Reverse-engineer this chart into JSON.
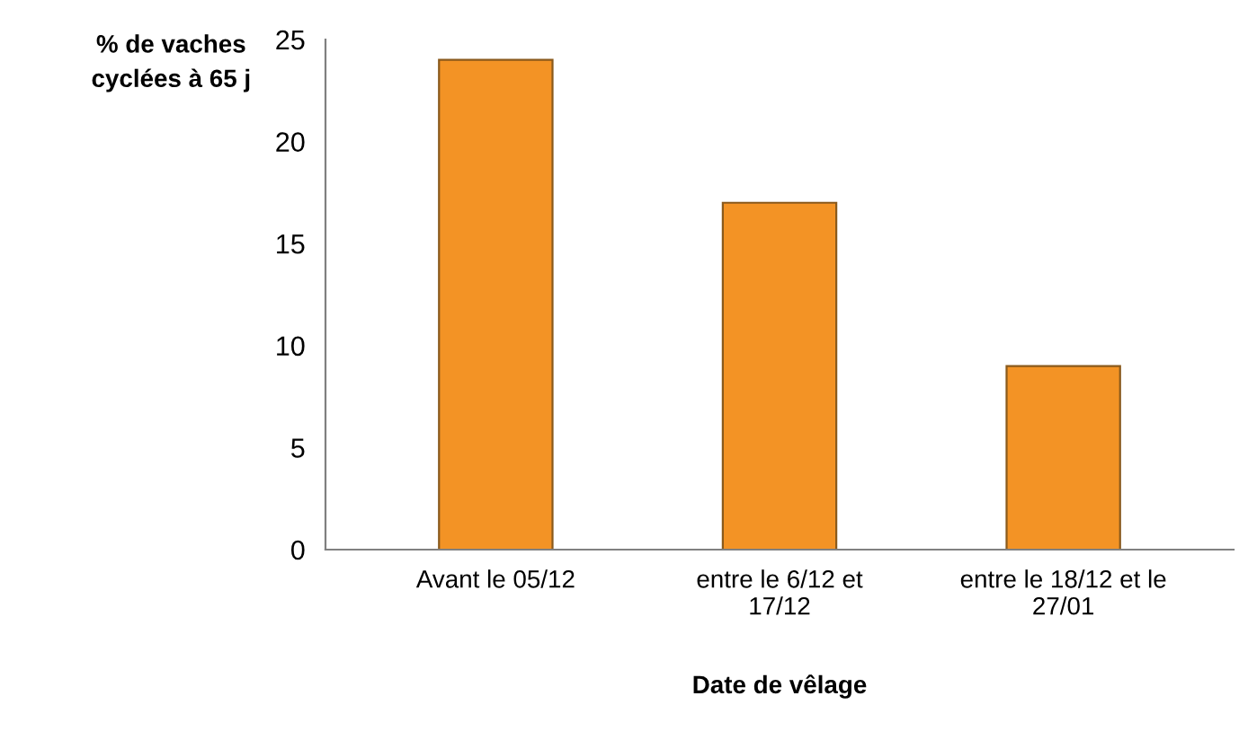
{
  "chart_data": {
    "type": "bar",
    "categories": [
      "Avant le 05/12",
      "entre le 6/12 et\n17/12",
      "entre le 18/12 et le\n27/01"
    ],
    "values": [
      24,
      17,
      9
    ],
    "color": "#f39325",
    "ylabel": "% de vaches\ncyclées à 65 j",
    "xlabel": "Date de vêlage",
    "ylim": [
      0,
      25
    ],
    "yticks": [
      0,
      5,
      10,
      15,
      20,
      25
    ],
    "grid": false
  }
}
